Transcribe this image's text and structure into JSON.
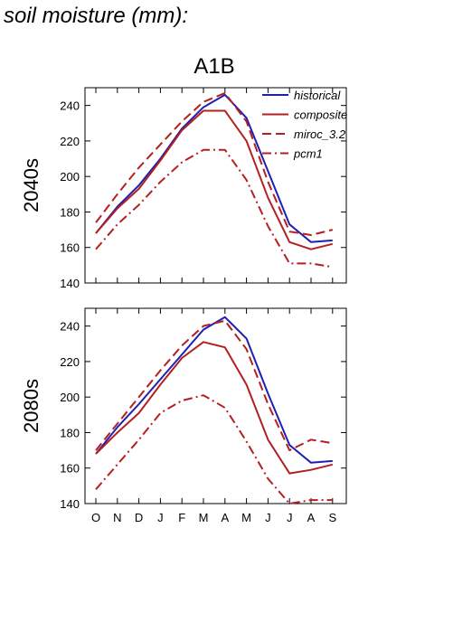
{
  "figure": {
    "title": "soil moisture (mm):",
    "scenario": "A1B"
  },
  "colors": {
    "historical": "#1f1fb4",
    "model": "#b41f1f"
  },
  "chart_data": [
    {
      "type": "line",
      "panel_label": "2040s",
      "categories": [
        "O",
        "N",
        "D",
        "J",
        "F",
        "M",
        "A",
        "M",
        "J",
        "J",
        "A",
        "S"
      ],
      "ylim": [
        140,
        250
      ],
      "yticks": [
        140,
        160,
        180,
        200,
        220,
        240
      ],
      "legend": "top-right",
      "series": [
        {
          "name": "historical",
          "style": "solid",
          "color": "#1f1fb4",
          "values": [
            168,
            183,
            195,
            210,
            227,
            239,
            246,
            233,
            203,
            173,
            163,
            164
          ]
        },
        {
          "name": "composite",
          "style": "solid",
          "color": "#b41f1f",
          "values": [
            168,
            182,
            193,
            209,
            226,
            237,
            237,
            220,
            188,
            163,
            159,
            162
          ]
        },
        {
          "name": "miroc_3.2",
          "style": "dash",
          "color": "#b41f1f",
          "values": [
            174,
            190,
            205,
            218,
            231,
            242,
            247,
            231,
            197,
            169,
            167,
            170
          ]
        },
        {
          "name": "pcm1",
          "style": "dashdot",
          "color": "#b41f1f",
          "values": [
            159,
            173,
            184,
            197,
            208,
            215,
            215,
            198,
            172,
            151,
            151,
            149
          ]
        }
      ]
    },
    {
      "type": "line",
      "panel_label": "2080s",
      "categories": [
        "O",
        "N",
        "D",
        "J",
        "F",
        "M",
        "A",
        "M",
        "J",
        "J",
        "A",
        "S"
      ],
      "ylim": [
        140,
        250
      ],
      "yticks": [
        140,
        160,
        180,
        200,
        220,
        240
      ],
      "series": [
        {
          "name": "historical",
          "style": "solid",
          "color": "#1f1fb4",
          "values": [
            168,
            183,
            196,
            210,
            224,
            238,
            245,
            233,
            202,
            173,
            163,
            164
          ]
        },
        {
          "name": "composite",
          "style": "solid",
          "color": "#b41f1f",
          "values": [
            168,
            180,
            191,
            207,
            222,
            231,
            228,
            207,
            176,
            157,
            159,
            162
          ]
        },
        {
          "name": "miroc_3.2",
          "style": "dash",
          "color": "#b41f1f",
          "values": [
            170,
            185,
            200,
            215,
            229,
            240,
            243,
            227,
            196,
            170,
            176,
            174
          ]
        },
        {
          "name": "pcm1",
          "style": "dashdot",
          "color": "#b41f1f",
          "values": [
            148,
            162,
            176,
            191,
            198,
            201,
            194,
            175,
            154,
            140,
            142,
            142
          ]
        }
      ]
    }
  ]
}
